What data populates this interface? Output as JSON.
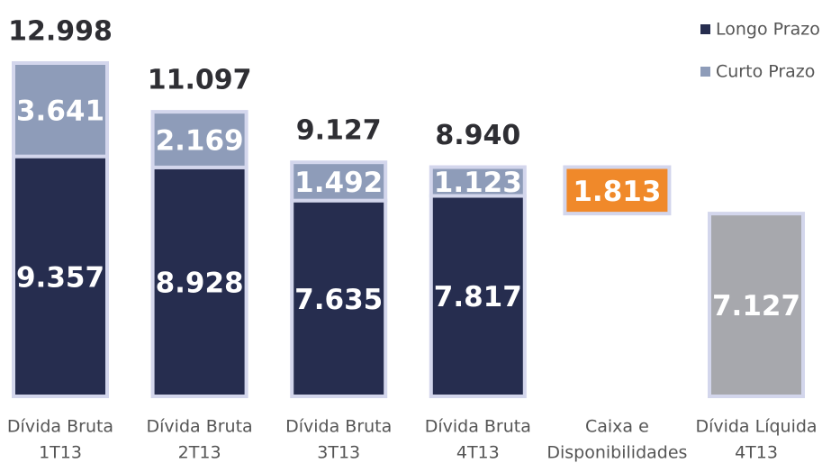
{
  "chart_data": {
    "type": "stacked_waterfall",
    "categories": [
      [
        "Dívida Bruta",
        "1T13"
      ],
      [
        "Dívida Bruta",
        "2T13"
      ],
      [
        "Dívida Bruta",
        "3T13"
      ],
      [
        "Dívida Bruta",
        "4T13"
      ],
      [
        "Caixa e",
        "Disponibilidades"
      ],
      [
        "Dívida Líquida",
        "4T13"
      ]
    ],
    "series": [
      {
        "name": "Longo Prazo",
        "color": "#262d4f",
        "values": [
          9357,
          8928,
          7635,
          7817,
          null,
          null
        ],
        "value_labels": [
          "9.357",
          "8.928",
          "7.635",
          "7.817",
          null,
          null
        ]
      },
      {
        "name": "Curto Prazo",
        "color": "#8e9cb9",
        "values": [
          3641,
          2169,
          1492,
          1123,
          null,
          null
        ],
        "value_labels": [
          "3.641",
          "2.169",
          "1.492",
          "1.123",
          null,
          null
        ]
      }
    ],
    "totals": {
      "values": [
        12998,
        11097,
        9127,
        8940
      ],
      "value_labels": [
        "12.998",
        "11.097",
        "9.127",
        "8.940"
      ]
    },
    "cash": {
      "value": 1813,
      "label": "1.813",
      "color": "#f0892a"
    },
    "net_debt": {
      "value": 7127,
      "label": "7.127",
      "color": "#a7a8ad"
    },
    "legend": "top-right"
  }
}
